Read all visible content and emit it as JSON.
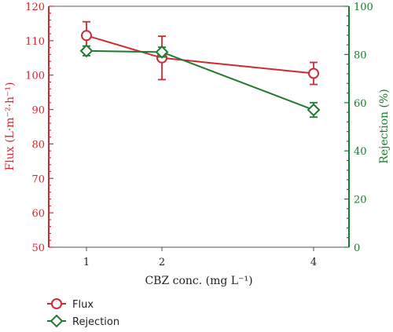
{
  "chart_data": {
    "type": "line",
    "x": [
      1,
      2,
      4
    ],
    "x_ticks": [
      "1",
      "2",
      "4"
    ],
    "xlabel": "CBZ conc. (mg L⁻¹)",
    "ylabel_left": "Flux (L·m⁻²·h⁻¹)",
    "ylabel_right": "Rejection (%)",
    "ylim_left": [
      50,
      120
    ],
    "yticks_left": [
      "50",
      "60",
      "70",
      "80",
      "90",
      "100",
      "110",
      "120"
    ],
    "ylim_right": [
      0,
      100
    ],
    "yticks_right": [
      "0",
      "20",
      "40",
      "60",
      "80",
      "100"
    ],
    "grid": false,
    "legend_position": "bottom-left",
    "series": [
      {
        "name": "Flux",
        "axis": "left",
        "marker": "circle",
        "color": "#cc2b35",
        "values": [
          111.5,
          105,
          100.5
        ],
        "error": [
          4,
          6.3,
          3.2
        ]
      },
      {
        "name": "Rejection",
        "axis": "right",
        "marker": "diamond",
        "color": "#1e7a2e",
        "values": [
          81.5,
          81,
          57
        ],
        "error": [
          2,
          2,
          3
        ]
      }
    ]
  }
}
